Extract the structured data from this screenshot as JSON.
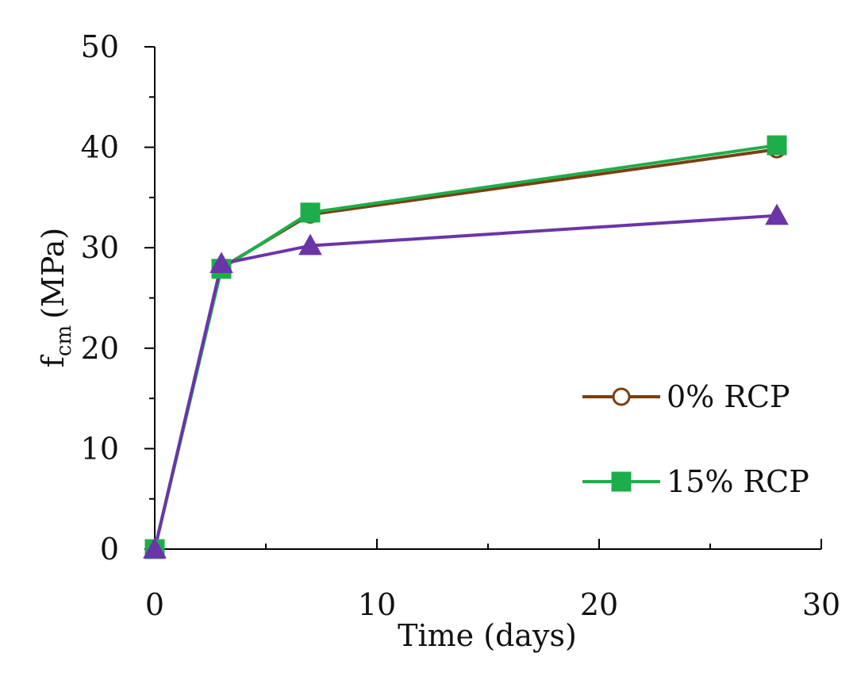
{
  "chart_data": {
    "type": "line",
    "title": "",
    "xlabel": "Time (days)",
    "ylabel_main": "f",
    "ylabel_sub": "cm",
    "ylabel_unit": "(MPa)",
    "xlim": [
      0,
      30
    ],
    "ylim": [
      0,
      50
    ],
    "x_ticks": [
      0,
      10,
      20,
      30
    ],
    "x_tick_labels": [
      "0",
      "10",
      "20",
      "30"
    ],
    "x_minor_step": 5,
    "y_ticks": [
      0,
      10,
      20,
      30,
      40,
      50
    ],
    "y_tick_labels": [
      "0",
      "10",
      "20",
      "30",
      "40",
      "50"
    ],
    "y_minor_step": 5,
    "grid": false,
    "legend_position": "bottom-right",
    "x": [
      0,
      3,
      7,
      28
    ],
    "series": [
      {
        "name": "0% RCP",
        "marker": "circle-open",
        "color": "#7B3F12",
        "in_legend": true,
        "values": [
          0,
          28.0,
          33.3,
          39.8
        ]
      },
      {
        "name": "15% RCP",
        "marker": "square",
        "color": "#1DAE4B",
        "in_legend": true,
        "values": [
          0,
          27.9,
          33.5,
          40.2
        ]
      },
      {
        "name": "",
        "marker": "triangle",
        "color": "#6B35A8",
        "in_legend": false,
        "values": [
          0,
          28.4,
          30.2,
          33.2
        ]
      }
    ]
  }
}
